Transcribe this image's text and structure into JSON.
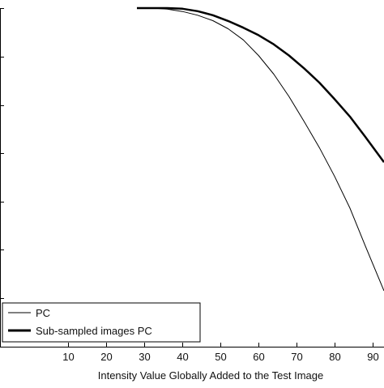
{
  "chart_data": {
    "type": "line",
    "title": "",
    "xlabel": "Intensity Value Globally Added to the Test Image",
    "ylabel": "",
    "xlim": [
      -8,
      93
    ],
    "ylim": [
      0,
      1
    ],
    "xticks": [
      10,
      20,
      30,
      40,
      50,
      60,
      70,
      80,
      90
    ],
    "xtick_labels": [
      "10",
      "20",
      "30",
      "40",
      "50",
      "60",
      "70",
      "80",
      "90"
    ],
    "yticks": [
      0.143,
      0.286,
      0.429,
      0.571,
      0.714,
      0.857,
      1.0
    ],
    "grid": false,
    "legend_position": "bottom-left",
    "series": [
      {
        "name": "PC",
        "color": "#000000",
        "style": "thin",
        "x": [
          28,
          32,
          36,
          40,
          44,
          48,
          52,
          56,
          60,
          64,
          68,
          72,
          76,
          80,
          84,
          88,
          93
        ],
        "y": [
          1.0,
          1.0,
          0.997,
          0.99,
          0.979,
          0.963,
          0.939,
          0.906,
          0.86,
          0.805,
          0.739,
          0.665,
          0.588,
          0.503,
          0.41,
          0.3,
          0.165
        ]
      },
      {
        "name": "Sub-sampled images PC",
        "color": "#000000",
        "style": "thick",
        "x": [
          28,
          32,
          36,
          40,
          44,
          48,
          52,
          56,
          60,
          64,
          68,
          72,
          76,
          80,
          84,
          88,
          93
        ],
        "y": [
          1.0,
          1.0,
          1.0,
          0.998,
          0.991,
          0.979,
          0.962,
          0.942,
          0.92,
          0.893,
          0.86,
          0.822,
          0.78,
          0.731,
          0.68,
          0.621,
          0.545
        ]
      }
    ]
  }
}
